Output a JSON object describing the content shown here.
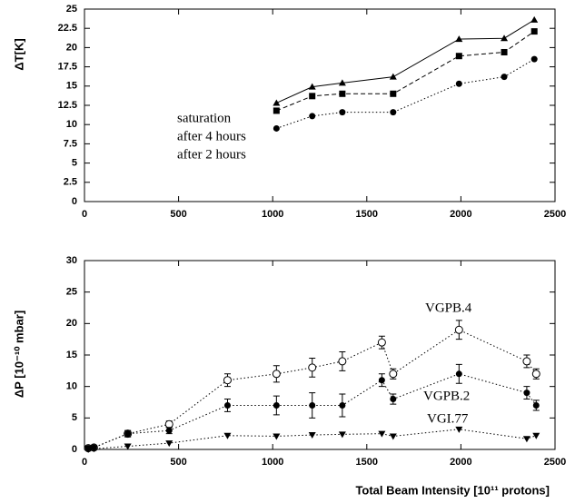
{
  "chart_data": [
    {
      "type": "line",
      "ylabel": "ΔT[K]",
      "x": [
        1020,
        1210,
        1370,
        1640,
        1990,
        2230,
        2390
      ],
      "series": [
        {
          "name": "saturation",
          "color": "#000000",
          "linestyle": "solid",
          "marker": "triangle",
          "values": [
            12.8,
            14.9,
            15.4,
            16.2,
            21.1,
            21.2,
            23.6
          ]
        },
        {
          "name": "after 4 hours",
          "color": "#000000",
          "linestyle": "dashed",
          "marker": "square",
          "values": [
            11.8,
            13.7,
            14.0,
            14.0,
            18.9,
            19.4,
            22.1
          ]
        },
        {
          "name": "after 2 hours",
          "color": "#000000",
          "linestyle": "dotted",
          "marker": "circle",
          "values": [
            9.5,
            11.1,
            11.6,
            11.6,
            15.3,
            16.2,
            18.5
          ]
        }
      ],
      "xlim": [
        0,
        2500
      ],
      "xticks": [
        0,
        500,
        1000,
        1500,
        2000,
        2500
      ],
      "ylim": [
        0,
        25
      ],
      "yticks": [
        0,
        2.5,
        5,
        7.5,
        10,
        12.5,
        15,
        17.5,
        20,
        22.5,
        25
      ]
    },
    {
      "type": "line",
      "ylabel": "ΔP [10⁻¹⁰ mbar]",
      "xlabel": "Total Beam Intensity [10¹¹ protons]",
      "x": [
        20,
        50,
        230,
        450,
        760,
        1020,
        1210,
        1370,
        1580,
        1640,
        1990,
        2350,
        2400
      ],
      "series": [
        {
          "name": "VGPB.4",
          "color": "#000000",
          "linestyle": "dotted",
          "marker": "open-circle",
          "values": [
            0.2,
            0.3,
            2.5,
            4,
            11,
            12,
            13,
            14,
            17,
            12,
            19,
            14,
            12
          ],
          "errors": [
            0.3,
            0.3,
            0.5,
            0.5,
            1,
            1.3,
            1.5,
            1.5,
            1,
            0.8,
            1.5,
            1,
            0.8
          ]
        },
        {
          "name": "VGPB.2",
          "color": "#000000",
          "linestyle": "dotted",
          "marker": "circle",
          "values": [
            0.2,
            0.3,
            2.5,
            3,
            7,
            7,
            7,
            7,
            11,
            8,
            12,
            9,
            7
          ],
          "errors": [
            0.3,
            0.3,
            0.5,
            0.5,
            1,
            1.5,
            2,
            1.8,
            1,
            0.8,
            1.5,
            1,
            0.8
          ]
        },
        {
          "name": "VGI.77",
          "color": "#000000",
          "linestyle": "dotted",
          "marker": "triangle-down",
          "values": [
            0,
            0.1,
            0.5,
            1,
            2.2,
            2.1,
            2.3,
            2.4,
            2.5,
            2.1,
            3.2,
            1.7,
            2.2
          ]
        }
      ],
      "xlim": [
        0,
        2500
      ],
      "xticks": [
        0,
        500,
        1000,
        1500,
        2000,
        2500
      ],
      "ylim": [
        0,
        30
      ],
      "yticks": [
        0,
        5,
        10,
        15,
        20,
        25,
        30
      ]
    }
  ]
}
